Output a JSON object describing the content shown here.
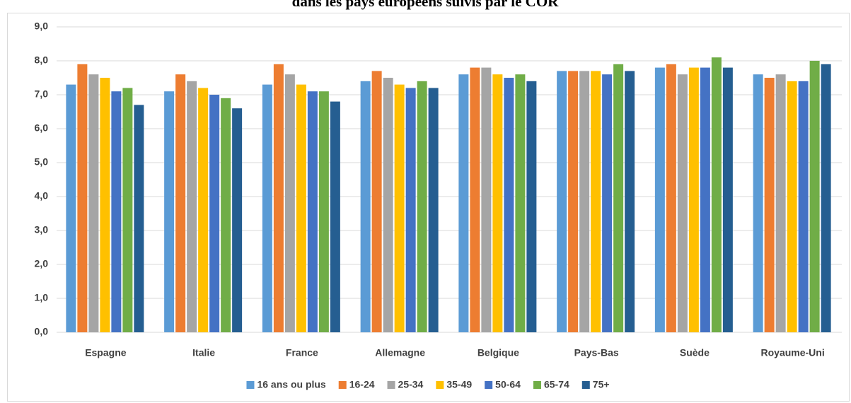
{
  "chart_data": {
    "type": "bar",
    "title": "dans les pays européens suivis par le COR",
    "categories": [
      "Espagne",
      "Italie",
      "France",
      "Allemagne",
      "Belgique",
      "Pays-Bas",
      "Suède",
      "Royaume-Uni"
    ],
    "series": [
      {
        "name": "16 ans ou plus",
        "color": "#5b9bd5",
        "values": [
          7.3,
          7.1,
          7.3,
          7.4,
          7.6,
          7.7,
          7.8,
          7.6
        ]
      },
      {
        "name": "16-24",
        "color": "#ed7d31",
        "values": [
          7.9,
          7.6,
          7.9,
          7.7,
          7.8,
          7.7,
          7.9,
          7.5
        ]
      },
      {
        "name": "25-34",
        "color": "#a5a5a5",
        "values": [
          7.6,
          7.4,
          7.6,
          7.5,
          7.8,
          7.7,
          7.6,
          7.6
        ]
      },
      {
        "name": "35-49",
        "color": "#ffc000",
        "values": [
          7.5,
          7.2,
          7.3,
          7.3,
          7.6,
          7.7,
          7.8,
          7.4
        ]
      },
      {
        "name": "50-64",
        "color": "#4472c4",
        "values": [
          7.1,
          7.0,
          7.1,
          7.2,
          7.5,
          7.6,
          7.8,
          7.4
        ]
      },
      {
        "name": "65-74",
        "color": "#70ad47",
        "values": [
          7.2,
          6.9,
          7.1,
          7.4,
          7.6,
          7.9,
          8.1,
          8.0
        ]
      },
      {
        "name": "75+",
        "color": "#255e91",
        "values": [
          6.7,
          6.6,
          6.8,
          7.2,
          7.4,
          7.7,
          7.8,
          7.9
        ]
      }
    ],
    "ylim": [
      0,
      9
    ],
    "yticks": [
      {
        "value": 0,
        "label": "0,0"
      },
      {
        "value": 1,
        "label": "1,0"
      },
      {
        "value": 2,
        "label": "2,0"
      },
      {
        "value": 3,
        "label": "3,0"
      },
      {
        "value": 4,
        "label": "4,0"
      },
      {
        "value": 5,
        "label": "5,0"
      },
      {
        "value": 6,
        "label": "6,0"
      },
      {
        "value": 7,
        "label": "7,0"
      },
      {
        "value": 8,
        "label": "8,0"
      },
      {
        "value": 9,
        "label": "9,0"
      }
    ],
    "grid": true,
    "legend": "bottom"
  }
}
